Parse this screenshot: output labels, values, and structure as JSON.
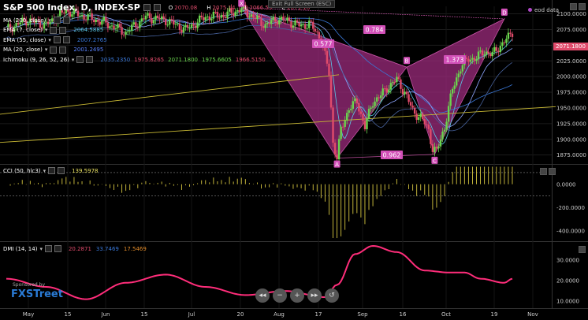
{
  "header": {
    "title": "S&P 500 Index, D, INDEX-SP",
    "ohlc": [
      {
        "k": "O",
        "v": "2070.08"
      },
      {
        "k": "H",
        "v": "2075.14"
      },
      {
        "k": "L",
        "v": "2066.53"
      },
      {
        "k": "C",
        "v": "2071.18"
      }
    ]
  },
  "exit_fullscreen": "Exit Full Screen (ESC)",
  "eod_label": "eod data",
  "price_tag": "2071.1800",
  "indicators": [
    {
      "label": "MA (200, close)",
      "values": []
    },
    {
      "label": "EMA (7, close)",
      "values": [
        "2064.5885"
      ]
    },
    {
      "label": "EMA (55, close)",
      "values": [
        "2007.2765"
      ]
    },
    {
      "label": "MA (20, close)",
      "values": [
        "2001.2495"
      ]
    },
    {
      "label": "Ichimoku (9, 26, 52, 26)",
      "values": [
        "2035.2350",
        "1975.8265",
        "2071.1800",
        "1975.6605",
        "1966.5150"
      ]
    }
  ],
  "price_axis": [
    "2100.0000",
    "2075.0000",
    "2050.0000",
    "2025.0000",
    "2000.0000",
    "1975.0000",
    "1950.0000",
    "1925.0000",
    "1900.0000",
    "1875.0000"
  ],
  "pattern": {
    "points": [
      "X",
      "A",
      "B",
      "C",
      "D"
    ],
    "ratios": {
      "xd": "0.784",
      "xb": "0.577",
      "bd": "1.373",
      "ac": "0.962"
    }
  },
  "cci": {
    "label": "CCI (50, hlc3)",
    "value": "139.5978",
    "axis": [
      "0.0000",
      "-200.0000",
      "-400.0000"
    ]
  },
  "dmi": {
    "label": "DMI (14, 14)",
    "values": [
      {
        "v": "20.2871",
        "color": "#e04b6b"
      },
      {
        "v": "33.7469",
        "color": "#3a78d8"
      },
      {
        "v": "17.5469",
        "color": "#e08a2a"
      }
    ],
    "axis": [
      "30.0000",
      "20.0000",
      "10.0000"
    ]
  },
  "time_axis": [
    "May",
    "15",
    "Jun",
    "15",
    "Jul",
    "20",
    "Aug",
    "17",
    "Sep",
    "16",
    "Oct",
    "19",
    "Nov"
  ],
  "sponsor": {
    "text": "Sponsored by",
    "logo": "FXSTreet"
  },
  "nav_controls": [
    {
      "icon": "rewind-icon",
      "glyph": "◂◂"
    },
    {
      "icon": "zoom-out-icon",
      "glyph": "−"
    },
    {
      "icon": "zoom-in-icon",
      "glyph": "+"
    },
    {
      "icon": "forward-icon",
      "glyph": "▸▸"
    },
    {
      "icon": "reset-icon",
      "glyph": "↺"
    }
  ],
  "colors": {
    "up": "#6ad44e",
    "down": "#e04b6b",
    "pattern_fill": "#9c2b7c",
    "pattern_label": "#d250b8",
    "dmi_line": "#ff2d7a",
    "cci": "#d6c640",
    "yellow_line": "#c9b934"
  }
}
